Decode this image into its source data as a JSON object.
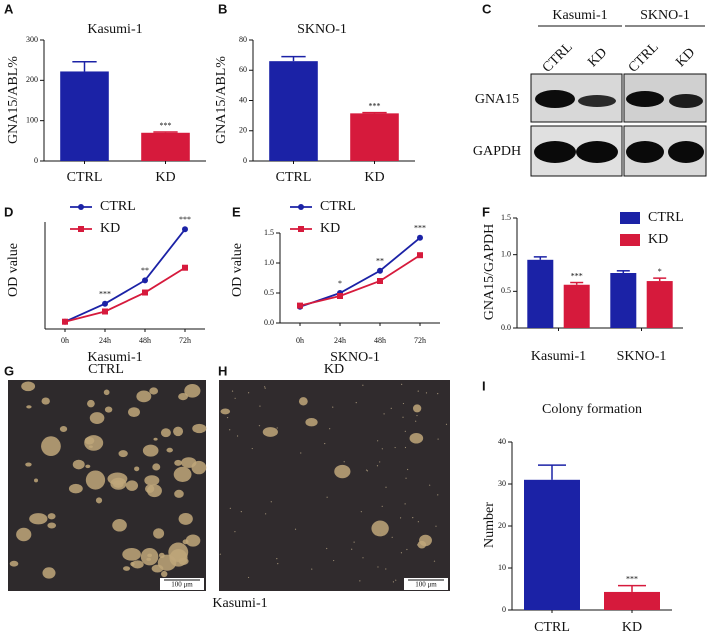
{
  "panel_letters": [
    "A",
    "B",
    "C",
    "D",
    "E",
    "F",
    "G",
    "H",
    "I"
  ],
  "blot": {
    "groups": [
      "Kasumi-1",
      "SKNO-1"
    ],
    "lanes": [
      "CTRL",
      "KD",
      "CTRL",
      "KD"
    ],
    "rows": [
      "GNA15",
      "GAPDH"
    ]
  },
  "images": [
    {
      "title": "CTRL",
      "scale_bar": "100 μm"
    },
    {
      "title": "KD",
      "scale_bar": "100 μm"
    }
  ],
  "images_caption": "Kasumi-1",
  "chart_data": [
    {
      "type": "bar",
      "title": "Kasumi-1",
      "y_label": "GNA15/ABL%",
      "categories": [
        "CTRL",
        "KD"
      ],
      "values": [
        222,
        70
      ],
      "errors": [
        24,
        2
      ],
      "colors": [
        "#1b22a6",
        "#d61a3c"
      ],
      "significance": [
        null,
        "***"
      ],
      "ylim": [
        0,
        300
      ],
      "yticks": [
        0,
        100,
        200,
        300
      ]
    },
    {
      "type": "bar",
      "title": "SKNO-1",
      "y_label": "GNA15/ABL%",
      "categories": [
        "CTRL",
        "KD"
      ],
      "values": [
        66,
        31.5
      ],
      "errors": [
        3,
        0.5
      ],
      "colors": [
        "#1b22a6",
        "#d61a3c"
      ],
      "significance": [
        null,
        "***"
      ],
      "ylim": [
        0,
        80
      ],
      "yticks": [
        0,
        20,
        40,
        60,
        80
      ]
    },
    {
      "type": "line",
      "x_label": "Kasumi-1",
      "y_label": "OD value",
      "categories": [
        "0h",
        "24h",
        "48h",
        "72h"
      ],
      "series": [
        {
          "name": "CTRL",
          "color": "#1b22a6",
          "marker": "circle",
          "values": [
            0.15,
            0.52,
            1.0,
            2.05
          ]
        },
        {
          "name": "KD",
          "color": "#d61a3c",
          "marker": "square",
          "values": [
            0.15,
            0.36,
            0.75,
            1.26
          ]
        }
      ],
      "significance": [
        null,
        "***",
        "**",
        "***"
      ],
      "ylim": [
        0,
        2.2
      ],
      "legend": "upper left"
    },
    {
      "type": "line",
      "x_label": "SKNO-1",
      "y_label": "OD value",
      "categories": [
        "0h",
        "24h",
        "48h",
        "72h"
      ],
      "series": [
        {
          "name": "CTRL",
          "color": "#1b22a6",
          "marker": "circle",
          "values": [
            0.27,
            0.5,
            0.87,
            1.42
          ]
        },
        {
          "name": "KD",
          "color": "#d61a3c",
          "marker": "square",
          "values": [
            0.29,
            0.45,
            0.7,
            1.13
          ]
        }
      ],
      "significance": [
        null,
        "*",
        "**",
        "***"
      ],
      "ylim": [
        0,
        1.5
      ],
      "yticks": [
        {
          "value": 0,
          "label": "0.0"
        },
        {
          "value": 0.5,
          "label": "0.5"
        },
        {
          "value": 1,
          "label": "1.0"
        },
        {
          "value": 1.5,
          "label": "1.5"
        }
      ],
      "legend": "upper left"
    },
    {
      "type": "bar",
      "y_label": "GNA15/GAPDH",
      "categories": [
        "Kasumi-1",
        "SKNO-1"
      ],
      "series": [
        {
          "name": "CTRL",
          "color": "#1b22a6",
          "values": [
            0.93,
            0.75
          ],
          "errors": [
            0.04,
            0.03
          ]
        },
        {
          "name": "KD",
          "color": "#d61a3c",
          "values": [
            0.59,
            0.64
          ],
          "errors": [
            0.03,
            0.04
          ],
          "significance": [
            "***",
            "*"
          ]
        }
      ],
      "ylim": [
        0,
        1.5
      ],
      "yticks": [
        {
          "value": 0,
          "label": "0.0"
        },
        {
          "value": 0.5,
          "label": "0.5"
        },
        {
          "value": 1,
          "label": "1.0"
        },
        {
          "value": 1.5,
          "label": "1.5"
        }
      ],
      "legend": "upper right"
    },
    {
      "type": "bar",
      "title": "Colony formation",
      "y_label": "Number",
      "categories": [
        "CTRL",
        "KD"
      ],
      "values": [
        31,
        4.3
      ],
      "errors": [
        3.5,
        1.5
      ],
      "colors": [
        "#1b22a6",
        "#d61a3c"
      ],
      "significance": [
        null,
        "***"
      ],
      "ylim": [
        0,
        40
      ],
      "yticks": [
        0,
        10,
        20,
        30,
        40
      ]
    }
  ]
}
